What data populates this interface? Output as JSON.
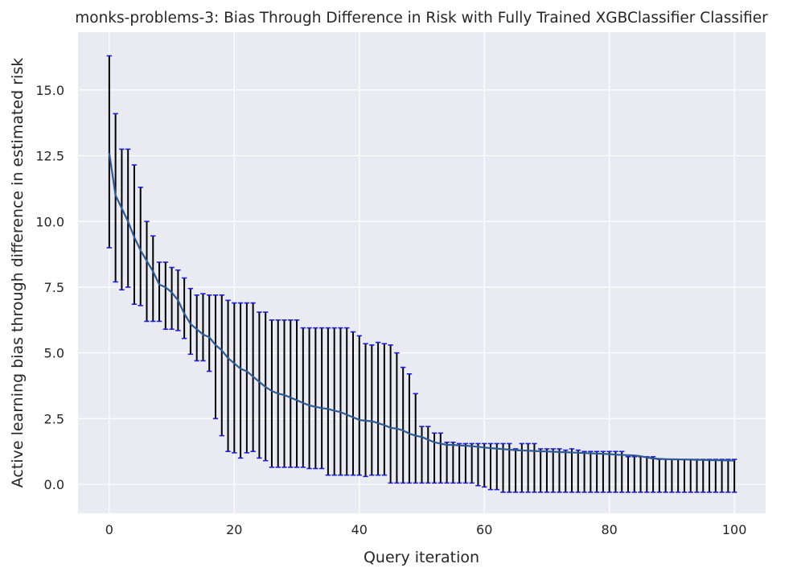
{
  "chart_data": {
    "type": "line",
    "title": "monks-problems-3: Bias Through Difference in Risk with Fully Trained XGBClassifier Classifier",
    "xlabel": "Query iteration",
    "ylabel": "Active learning bias through difference in estimated risk",
    "xlim": [
      -5,
      105
    ],
    "ylim": [
      -1.1,
      17.2
    ],
    "xticks": [
      0,
      20,
      40,
      60,
      80,
      100
    ],
    "xtick_labels": [
      "0",
      "20",
      "40",
      "60",
      "80",
      "100"
    ],
    "yticks": [
      0.0,
      2.5,
      5.0,
      7.5,
      10.0,
      12.5,
      15.0
    ],
    "ytick_labels": [
      "0.0",
      "2.5",
      "5.0",
      "7.5",
      "10.0",
      "12.5",
      "15.0"
    ],
    "grid": true,
    "background": "#eaeaf2",
    "line_color": "#2f5b94",
    "errorbar_color": "#000000",
    "cap_color": "#1f1fd6",
    "series": [
      {
        "x": [
          0,
          1,
          2,
          3,
          4,
          5,
          6,
          7,
          8,
          9,
          10,
          11,
          12,
          13,
          14,
          15,
          16,
          17,
          18,
          19,
          20,
          21,
          22,
          23,
          24,
          25,
          26,
          27,
          28,
          29,
          30,
          31,
          32,
          33,
          34,
          35,
          36,
          37,
          38,
          39,
          40,
          41,
          42,
          43,
          44,
          45,
          46,
          47,
          48,
          49,
          50,
          51,
          52,
          53,
          54,
          55,
          56,
          57,
          58,
          59,
          60,
          61,
          62,
          63,
          64,
          65,
          66,
          67,
          68,
          69,
          70,
          71,
          72,
          73,
          74,
          75,
          76,
          77,
          78,
          79,
          80,
          81,
          82,
          83,
          84,
          85,
          86,
          87,
          88,
          89,
          90,
          91,
          92,
          93,
          94,
          95,
          96,
          97,
          98,
          99,
          100
        ],
        "mean": [
          12.6,
          11.0,
          10.5,
          10.0,
          9.4,
          8.9,
          8.5,
          8.1,
          7.6,
          7.5,
          7.3,
          7.0,
          6.5,
          6.1,
          5.9,
          5.7,
          5.6,
          5.3,
          5.1,
          4.8,
          4.6,
          4.4,
          4.3,
          4.1,
          3.9,
          3.7,
          3.55,
          3.45,
          3.4,
          3.3,
          3.2,
          3.1,
          3.0,
          2.95,
          2.9,
          2.87,
          2.8,
          2.75,
          2.65,
          2.55,
          2.45,
          2.42,
          2.4,
          2.33,
          2.25,
          2.15,
          2.12,
          2.05,
          1.93,
          1.85,
          1.8,
          1.7,
          1.6,
          1.55,
          1.5,
          1.5,
          1.48,
          1.47,
          1.45,
          1.43,
          1.4,
          1.38,
          1.36,
          1.34,
          1.32,
          1.3,
          1.29,
          1.28,
          1.27,
          1.26,
          1.25,
          1.24,
          1.23,
          1.22,
          1.21,
          1.2,
          1.19,
          1.18,
          1.17,
          1.16,
          1.15,
          1.13,
          1.12,
          1.11,
          1.1,
          1.07,
          1.02,
          0.98,
          0.97,
          0.96,
          0.95,
          0.95,
          0.94,
          0.94,
          0.93,
          0.93,
          0.92,
          0.92,
          0.91,
          0.91,
          0.9
        ],
        "lower": [
          9.0,
          7.7,
          7.4,
          7.5,
          6.85,
          6.8,
          6.2,
          6.2,
          6.2,
          5.9,
          5.9,
          5.85,
          5.55,
          4.95,
          4.7,
          4.7,
          4.3,
          2.5,
          1.85,
          1.25,
          1.2,
          1.0,
          1.2,
          1.25,
          1.0,
          0.9,
          0.65,
          0.65,
          0.65,
          0.65,
          0.65,
          0.65,
          0.6,
          0.6,
          0.6,
          0.35,
          0.35,
          0.35,
          0.35,
          0.35,
          0.35,
          0.3,
          0.35,
          0.35,
          0.35,
          0.05,
          0.05,
          0.05,
          0.05,
          0.05,
          0.05,
          0.05,
          0.05,
          0.05,
          0.05,
          0.05,
          0.05,
          0.05,
          0.05,
          -0.05,
          -0.1,
          -0.2,
          -0.2,
          -0.3,
          -0.3,
          -0.3,
          -0.3,
          -0.3,
          -0.3,
          -0.3,
          -0.3,
          -0.3,
          -0.3,
          -0.3,
          -0.3,
          -0.3,
          -0.3,
          -0.3,
          -0.3,
          -0.3,
          -0.3,
          -0.3,
          -0.3,
          -0.3,
          -0.3,
          -0.3,
          -0.3,
          -0.3,
          -0.3,
          -0.3,
          -0.3,
          -0.3,
          -0.3,
          -0.3,
          -0.3,
          -0.3,
          -0.3,
          -0.3,
          -0.3,
          -0.3,
          -0.3
        ],
        "upper": [
          16.3,
          14.1,
          12.75,
          12.75,
          12.15,
          11.3,
          10.0,
          9.45,
          8.45,
          8.45,
          8.25,
          8.15,
          7.85,
          7.45,
          7.2,
          7.25,
          7.2,
          7.2,
          7.2,
          7.0,
          6.9,
          6.9,
          6.9,
          6.9,
          6.55,
          6.55,
          6.25,
          6.25,
          6.25,
          6.25,
          6.25,
          5.95,
          5.95,
          5.95,
          5.95,
          5.95,
          5.95,
          5.95,
          5.95,
          5.8,
          5.65,
          5.35,
          5.3,
          5.4,
          5.35,
          5.3,
          5.0,
          4.45,
          4.2,
          3.45,
          2.2,
          2.2,
          1.95,
          1.95,
          1.6,
          1.6,
          1.55,
          1.55,
          1.55,
          1.55,
          1.55,
          1.55,
          1.55,
          1.55,
          1.55,
          1.35,
          1.55,
          1.55,
          1.55,
          1.35,
          1.35,
          1.35,
          1.35,
          1.3,
          1.35,
          1.3,
          1.25,
          1.25,
          1.25,
          1.25,
          1.25,
          1.25,
          1.25,
          1.05,
          1.05,
          1.05,
          1.05,
          1.05,
          0.95,
          0.95,
          0.95,
          0.95,
          0.95,
          0.95,
          0.95,
          0.95,
          0.95,
          0.95,
          0.95,
          0.95,
          0.95
        ]
      }
    ]
  }
}
